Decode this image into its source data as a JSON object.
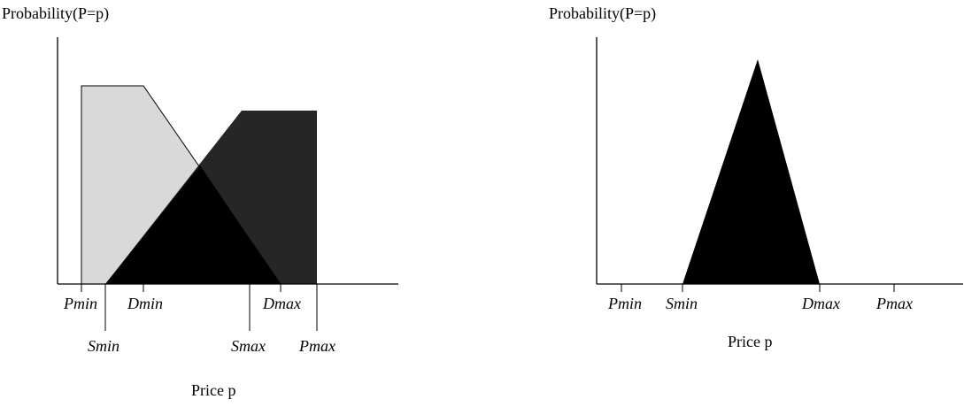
{
  "left_diagram": {
    "y_axis_label": "Probability(P=p)",
    "x_axis_label": "Price p",
    "tick_labels": {
      "pmin": "Pmin",
      "dmin": "Dmin",
      "dmax": "Dmax",
      "smin": "Smin",
      "smax": "Smax",
      "pmax": "Pmax"
    },
    "colors": {
      "demand_region": "#d9d9d9",
      "supply_region": "#262626",
      "overlap_region": "#000000"
    }
  },
  "right_diagram": {
    "y_axis_label": "Probability(P=p)",
    "x_axis_label": "Price p",
    "tick_labels": {
      "pmin": "Pmin",
      "smin": "Smin",
      "dmax": "Dmax",
      "pmax": "Pmax"
    },
    "colors": {
      "triangle": "#000000"
    }
  }
}
